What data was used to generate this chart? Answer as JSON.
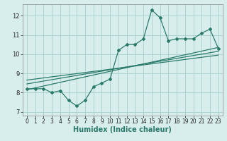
{
  "xlabel": "Humidex (Indice chaleur)",
  "x_data": [
    0,
    1,
    2,
    3,
    4,
    5,
    6,
    7,
    8,
    9,
    10,
    11,
    12,
    13,
    14,
    15,
    16,
    17,
    18,
    19,
    20,
    21,
    22,
    23
  ],
  "y_main": [
    8.2,
    8.2,
    8.2,
    8.0,
    8.1,
    7.6,
    7.3,
    7.6,
    8.3,
    8.5,
    8.7,
    10.2,
    10.5,
    10.5,
    10.8,
    12.3,
    11.9,
    10.7,
    10.8,
    10.8,
    10.8,
    11.1,
    11.3,
    10.3
  ],
  "trend1_x": [
    0,
    23
  ],
  "trend1_y": [
    8.15,
    10.35
  ],
  "trend2_x": [
    0,
    23
  ],
  "trend2_y": [
    8.45,
    10.15
  ],
  "trend3_x": [
    0,
    23
  ],
  "trend3_y": [
    8.65,
    9.95
  ],
  "line_color": "#2a7a6a",
  "bg_color": "#d8eeed",
  "grid_color": "#a8cece",
  "ylim": [
    6.8,
    12.6
  ],
  "xlim": [
    -0.5,
    23.5
  ],
  "yticks": [
    7,
    8,
    9,
    10,
    11,
    12
  ],
  "xticks": [
    0,
    1,
    2,
    3,
    4,
    5,
    6,
    7,
    8,
    9,
    10,
    11,
    12,
    13,
    14,
    15,
    16,
    17,
    18,
    19,
    20,
    21,
    22,
    23
  ],
  "tick_fontsize": 5.5,
  "xlabel_fontsize": 7.0
}
